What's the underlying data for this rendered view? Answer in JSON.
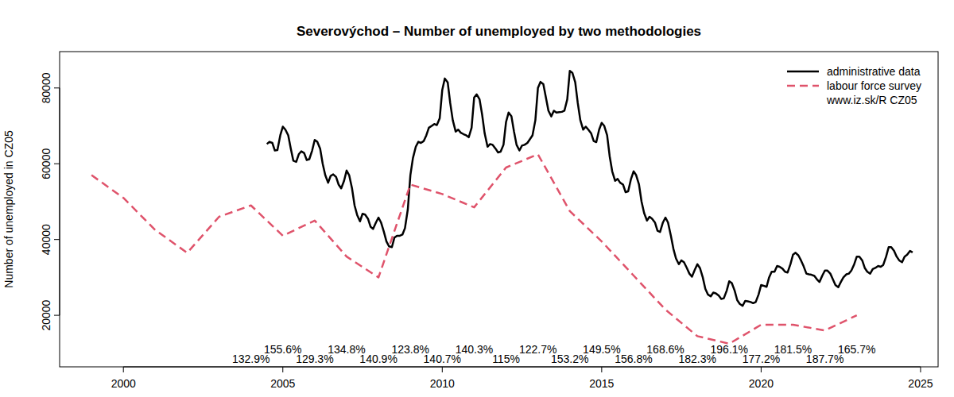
{
  "chart_data": {
    "type": "line",
    "title": "Severovýchod – Number of unemployed  by two methodologies",
    "y_label": "Number of unemployed in CZ05",
    "source": "www.iz.sk/R CZ05",
    "legend": "topright",
    "grid": false,
    "xlim": [
      1998,
      2025.55
    ],
    "xticks": [
      2000,
      2005,
      2010,
      2015,
      2020,
      2025
    ],
    "ylim": [
      6400,
      89600
    ],
    "yticks": [
      20000,
      40000,
      60000,
      80000
    ],
    "series": [
      {
        "name": "administrative data",
        "color": "#000000",
        "line_style": "solid",
        "x": [
          2004.5,
          2004.58,
          2004.67,
          2004.75,
          2004.83,
          2004.92,
          2005,
          2005.08,
          2005.17,
          2005.25,
          2005.33,
          2005.42,
          2005.5,
          2005.58,
          2005.67,
          2005.75,
          2005.83,
          2005.92,
          2006,
          2006.08,
          2006.17,
          2006.25,
          2006.33,
          2006.42,
          2006.5,
          2006.58,
          2006.67,
          2006.75,
          2006.83,
          2006.92,
          2007,
          2007.08,
          2007.17,
          2007.25,
          2007.33,
          2007.42,
          2007.5,
          2007.58,
          2007.67,
          2007.75,
          2007.83,
          2007.92,
          2008,
          2008.08,
          2008.17,
          2008.25,
          2008.33,
          2008.42,
          2008.5,
          2008.58,
          2008.67,
          2008.75,
          2008.83,
          2008.92,
          2009,
          2009.08,
          2009.17,
          2009.25,
          2009.33,
          2009.42,
          2009.5,
          2009.58,
          2009.67,
          2009.75,
          2009.83,
          2009.92,
          2010,
          2010.08,
          2010.17,
          2010.25,
          2010.33,
          2010.42,
          2010.5,
          2010.58,
          2010.67,
          2010.75,
          2010.83,
          2010.92,
          2011,
          2011.08,
          2011.17,
          2011.25,
          2011.33,
          2011.42,
          2011.5,
          2011.58,
          2011.67,
          2011.75,
          2011.83,
          2011.92,
          2012,
          2012.08,
          2012.17,
          2012.25,
          2012.33,
          2012.42,
          2012.5,
          2012.58,
          2012.67,
          2012.75,
          2012.83,
          2012.92,
          2013,
          2013.08,
          2013.17,
          2013.25,
          2013.33,
          2013.42,
          2013.5,
          2013.58,
          2013.67,
          2013.75,
          2013.83,
          2013.92,
          2014,
          2014.08,
          2014.17,
          2014.25,
          2014.33,
          2014.42,
          2014.5,
          2014.58,
          2014.67,
          2014.75,
          2014.83,
          2014.92,
          2015,
          2015.08,
          2015.17,
          2015.25,
          2015.33,
          2015.42,
          2015.5,
          2015.58,
          2015.67,
          2015.75,
          2015.83,
          2015.92,
          2016,
          2016.08,
          2016.17,
          2016.25,
          2016.33,
          2016.42,
          2016.5,
          2016.58,
          2016.67,
          2016.75,
          2016.83,
          2016.92,
          2017,
          2017.08,
          2017.17,
          2017.25,
          2017.33,
          2017.42,
          2017.5,
          2017.58,
          2017.67,
          2017.75,
          2017.83,
          2017.92,
          2018,
          2018.08,
          2018.17,
          2018.25,
          2018.33,
          2018.42,
          2018.5,
          2018.58,
          2018.67,
          2018.75,
          2018.83,
          2018.92,
          2019,
          2019.08,
          2019.17,
          2019.25,
          2019.33,
          2019.42,
          2019.5,
          2019.58,
          2019.67,
          2019.75,
          2019.83,
          2019.92,
          2020,
          2020.08,
          2020.17,
          2020.25,
          2020.33,
          2020.42,
          2020.5,
          2020.58,
          2020.67,
          2020.75,
          2020.83,
          2020.92,
          2021,
          2021.08,
          2021.17,
          2021.25,
          2021.33,
          2021.42,
          2021.5,
          2021.58,
          2021.67,
          2021.75,
          2021.83,
          2021.92,
          2022,
          2022.08,
          2022.17,
          2022.25,
          2022.33,
          2022.42,
          2022.5,
          2022.58,
          2022.67,
          2022.75,
          2022.83,
          2022.92,
          2023,
          2023.08,
          2023.17,
          2023.25,
          2023.33,
          2023.42,
          2023.5,
          2023.58,
          2023.67,
          2023.75,
          2023.83,
          2023.92,
          2024,
          2024.08,
          2024.17,
          2024.25,
          2024.33,
          2024.42,
          2024.5,
          2024.58,
          2024.67,
          2024.75
        ],
        "values": [
          65200,
          65800,
          65500,
          63500,
          63600,
          67500,
          69800,
          69000,
          67500,
          64000,
          60800,
          60500,
          62500,
          63300,
          62800,
          61000,
          61200,
          63500,
          66300,
          65800,
          64000,
          60000,
          57000,
          55000,
          56800,
          57200,
          56500,
          54500,
          53500,
          55500,
          58200,
          57000,
          53500,
          49000,
          46500,
          44800,
          46800,
          46600,
          45500,
          43400,
          42800,
          44500,
          45800,
          44500,
          42000,
          39500,
          38200,
          38000,
          40500,
          41000,
          41000,
          41300,
          43000,
          48000,
          57000,
          61500,
          64500,
          65800,
          65500,
          66000,
          67500,
          69500,
          70000,
          70500,
          70200,
          72000,
          79500,
          82500,
          81500,
          76000,
          71500,
          68500,
          69000,
          68200,
          67800,
          67500,
          67000,
          69500,
          77500,
          78300,
          77000,
          73000,
          68000,
          64500,
          65200,
          65000,
          64000,
          63000,
          63200,
          65000,
          71000,
          73500,
          72500,
          68500,
          65000,
          63500,
          64800,
          65000,
          65500,
          66500,
          67500,
          71500,
          80000,
          81600,
          81000,
          77500,
          74000,
          72500,
          74000,
          73500,
          73600,
          73700,
          74000,
          77000,
          84500,
          84000,
          81500,
          76000,
          71500,
          69000,
          69800,
          69000,
          68000,
          66000,
          65700,
          69000,
          70800,
          70000,
          67500,
          62000,
          58000,
          55500,
          56000,
          55000,
          54500,
          52500,
          52700,
          56000,
          58000,
          57000,
          54500,
          50000,
          47000,
          45000,
          46000,
          45500,
          44500,
          42300,
          42000,
          44500,
          45800,
          44500,
          41000,
          37500,
          35000,
          33500,
          34500,
          34000,
          32500,
          31000,
          30200,
          32000,
          33500,
          32500,
          30000,
          27000,
          25500,
          25000,
          26000,
          25800,
          25200,
          24300,
          24500,
          26500,
          29000,
          28500,
          26500,
          24000,
          23000,
          22500,
          23800,
          23700,
          23500,
          23200,
          23500,
          25500,
          28000,
          27800,
          27500,
          30000,
          31500,
          31500,
          33000,
          32800,
          32300,
          31500,
          31300,
          33500,
          36000,
          36500,
          35800,
          34500,
          33000,
          31000,
          30800,
          30700,
          30400,
          29500,
          28800,
          30500,
          31800,
          31800,
          31000,
          29500,
          28000,
          27400,
          28800,
          30000,
          30800,
          31000,
          31800,
          33500,
          35500,
          35500,
          34500,
          32500,
          31500,
          31000,
          32200,
          32500,
          33000,
          32800,
          33300,
          35500,
          38000,
          38000,
          37000,
          35500,
          34500,
          34000,
          35500,
          36000,
          37000,
          36600
        ]
      },
      {
        "name": "labour force survey",
        "color": "#df536b",
        "line_style": "dashed",
        "x": [
          1999,
          2000,
          2001,
          2002,
          2003,
          2004,
          2005,
          2006,
          2007,
          2008,
          2009,
          2010,
          2011,
          2012,
          2013,
          2014,
          2015,
          2016,
          2017,
          2018,
          2019,
          2020,
          2021,
          2022,
          2023
        ],
        "values": [
          57000,
          51000,
          42500,
          36500,
          46000,
          49000,
          41000,
          45000,
          35500,
          30000,
          54500,
          52000,
          48500,
          59000,
          62500,
          47500,
          39500,
          30500,
          21500,
          14500,
          12500,
          17500,
          17500,
          16000,
          20000
        ]
      }
    ],
    "ratio_labels": {
      "x": [
        2004,
        2005,
        2006,
        2007,
        2008,
        2009,
        2010,
        2011,
        2012,
        2013,
        2014,
        2015,
        2016,
        2017,
        2018,
        2019,
        2020,
        2021,
        2022,
        2023
      ],
      "labels": [
        "132.9%",
        "155.6%",
        "129.3%",
        "134.8%",
        "140.9%",
        "123.8%",
        "140.7%",
        "140.3%",
        "115%",
        "122.7%",
        "153.2%",
        "149.5%",
        "156.8%",
        "168.6%",
        "182.3%",
        "196.1%",
        "177.2%",
        "181.5%",
        "187.7%",
        "165.7%"
      ]
    }
  }
}
